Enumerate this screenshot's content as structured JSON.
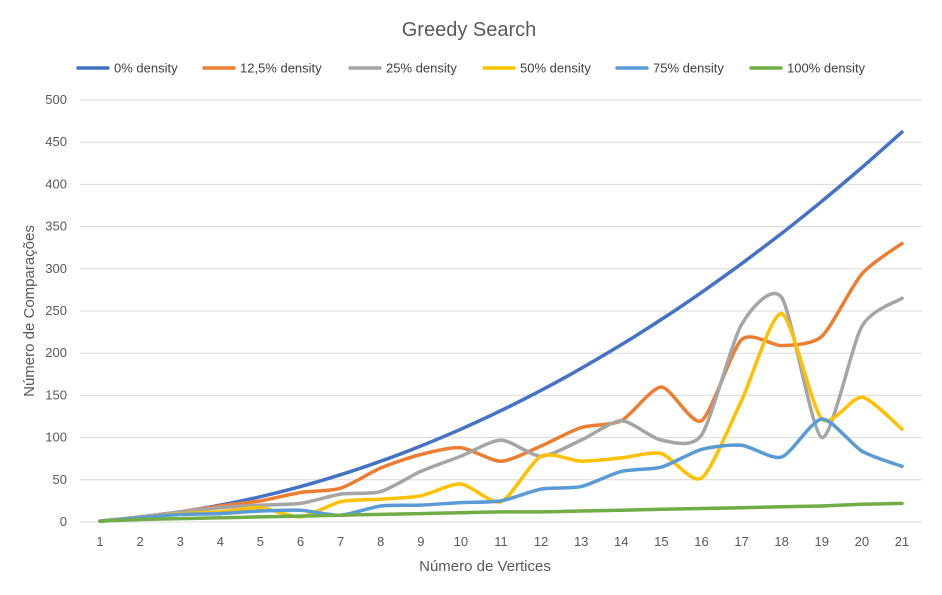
{
  "chart_data": {
    "type": "line",
    "title": "Greedy Search",
    "xlabel": "Número de Vertices",
    "ylabel": "Número de Comparações",
    "x": [
      1,
      2,
      3,
      4,
      5,
      6,
      7,
      8,
      9,
      10,
      11,
      12,
      13,
      14,
      15,
      16,
      17,
      18,
      19,
      20,
      21
    ],
    "ylim": [
      0,
      500
    ],
    "yticks": [
      0,
      50,
      100,
      150,
      200,
      250,
      300,
      350,
      400,
      450,
      500
    ],
    "grid": true,
    "legend_position": "top",
    "series": [
      {
        "name": "0% density",
        "color": "#4472C4",
        "values": [
          1,
          6,
          12,
          20,
          30,
          42,
          56,
          72,
          90,
          110,
          132,
          156,
          182,
          210,
          240,
          272,
          306,
          342,
          380,
          420,
          462
        ]
      },
      {
        "name": "12,5% density",
        "color": "#ED7D31",
        "values": [
          1,
          6,
          12,
          19,
          25,
          35,
          40,
          64,
          80,
          88,
          72,
          90,
          112,
          120,
          160,
          120,
          216,
          209,
          220,
          294,
          330
        ]
      },
      {
        "name": "25% density",
        "color": "#A5A5A5",
        "values": [
          1,
          6,
          12,
          17,
          20,
          22,
          33,
          36,
          60,
          78,
          97,
          78,
          97,
          120,
          97,
          103,
          234,
          266,
          100,
          232,
          265
        ]
      },
      {
        "name": "50% density",
        "color": "#FFC000",
        "values": [
          1,
          5,
          10,
          12,
          17,
          6,
          24,
          27,
          31,
          45,
          24,
          78,
          72,
          76,
          81,
          52,
          144,
          247,
          122,
          148,
          110
        ]
      },
      {
        "name": "75% density",
        "color": "#5B9BD5",
        "values": [
          1,
          5,
          9,
          10,
          13,
          14,
          8,
          19,
          20,
          23,
          25,
          39,
          42,
          60,
          65,
          86,
          91,
          77,
          122,
          84,
          66
        ]
      },
      {
        "name": "100% density",
        "color": "#70AD47",
        "values": [
          1,
          3,
          4,
          5,
          6,
          7,
          8,
          9,
          10,
          11,
          12,
          12,
          13,
          14,
          15,
          16,
          17,
          18,
          19,
          21,
          22
        ]
      }
    ]
  }
}
